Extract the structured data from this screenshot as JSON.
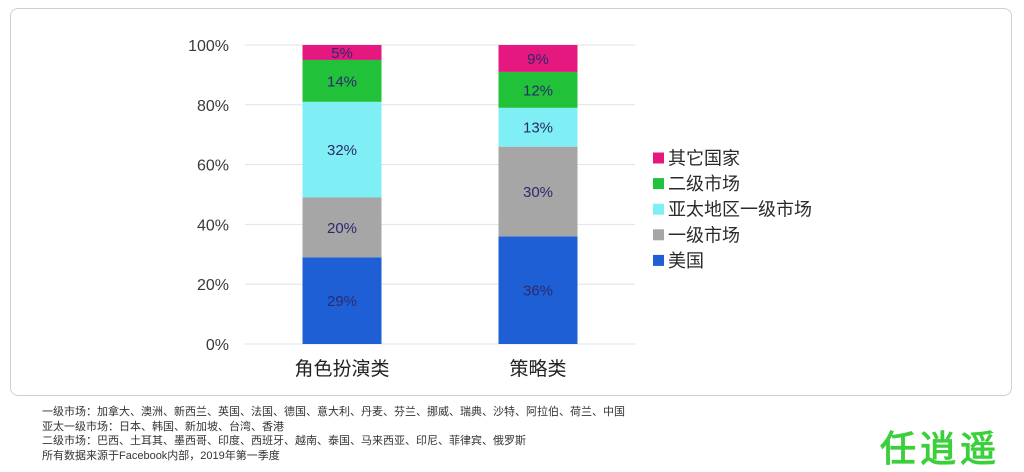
{
  "chart_data": {
    "type": "bar",
    "stacked": true,
    "categories": [
      "角色扮演类",
      "策略类"
    ],
    "series": [
      {
        "name": "美国",
        "values": [
          29,
          36
        ],
        "labels": [
          "29%",
          "36%"
        ],
        "color": "#1f5fd6"
      },
      {
        "name": "一级市场",
        "values": [
          20,
          30
        ],
        "labels": [
          "20%",
          "30%"
        ],
        "color": "#a6a6a6"
      },
      {
        "name": "亚太地区一级市场",
        "values": [
          32,
          13
        ],
        "labels": [
          "32%",
          "13%"
        ],
        "color": "#80eff5"
      },
      {
        "name": "二级市场",
        "values": [
          14,
          12
        ],
        "labels": [
          "14%",
          "12%"
        ],
        "color": "#21c13a"
      },
      {
        "name": "其它国家",
        "values": [
          5,
          9
        ],
        "labels": [
          "5%",
          "9%"
        ],
        "color": "#e5187f"
      }
    ],
    "ylim": [
      0,
      100
    ],
    "yticks": [
      0,
      20,
      40,
      60,
      80,
      100
    ],
    "ytick_labels": [
      "0%",
      "20%",
      "40%",
      "60%",
      "80%",
      "100%"
    ],
    "grid": true,
    "legend": "right"
  },
  "footnotes": [
    "一级市场：加拿大、澳洲、新西兰、英国、法国、德国、意大利、丹麦、芬兰、挪威、瑞典、沙特、阿拉伯、荷兰、中国",
    "亚太一级市场：日本、韩国、新加坡、台湾、香港",
    "二级市场：巴西、土耳其、墨西哥、印度、西班牙、越南、泰国、马来西亚、印尼、菲律宾、俄罗斯",
    "所有数据来源于Facebook内部，2019年第一季度"
  ],
  "watermark": "任逍遥"
}
